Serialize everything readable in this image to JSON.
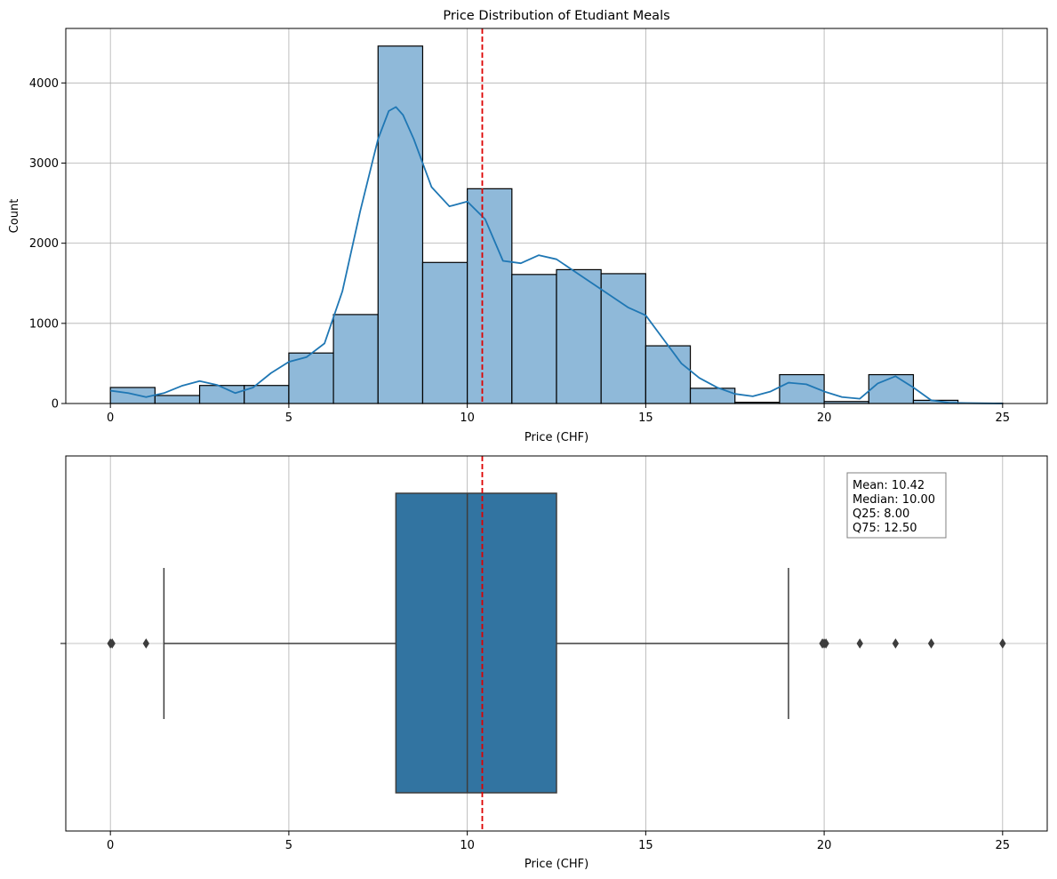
{
  "chart_data": [
    {
      "type": "histogram",
      "title": "Price Distribution of Etudiant Meals",
      "xlabel": "Price (CHF)",
      "ylabel": "Count",
      "xlim": [
        -1.25,
        26.25
      ],
      "ylim": [
        0,
        4680
      ],
      "xticks": [
        0,
        5,
        10,
        15,
        20,
        25
      ],
      "yticks": [
        0,
        1000,
        2000,
        3000,
        4000
      ],
      "grid": true,
      "bin_edges": [
        0,
        1.25,
        2.5,
        3.75,
        5,
        6.25,
        7.5,
        8.75,
        10,
        11.25,
        12.5,
        13.75,
        15,
        16.25,
        17.5,
        18.75,
        20,
        21.25,
        22.5,
        23.75,
        25
      ],
      "counts": [
        200,
        100,
        225,
        225,
        630,
        1110,
        4460,
        1760,
        2680,
        1610,
        1670,
        1620,
        720,
        190,
        15,
        360,
        25,
        360,
        40,
        5
      ],
      "bar_color": "#8fb9d9",
      "kde_color": "#1f77b4",
      "kde": {
        "x": [
          0,
          0.5,
          1,
          1.5,
          2,
          2.5,
          3,
          3.5,
          4,
          4.5,
          5,
          5.5,
          6,
          6.5,
          7,
          7.5,
          7.8,
          8,
          8.2,
          8.5,
          9,
          9.5,
          10,
          10.5,
          11,
          11.5,
          12,
          12.5,
          13,
          13.5,
          14,
          14.5,
          15,
          15.5,
          16,
          16.5,
          17,
          17.5,
          18,
          18.5,
          19,
          19.5,
          20,
          20.5,
          21,
          21.5,
          22,
          22.5,
          23,
          23.5,
          24,
          24.5,
          25
        ],
        "y": [
          160,
          130,
          80,
          130,
          220,
          280,
          230,
          130,
          200,
          380,
          520,
          580,
          750,
          1400,
          2400,
          3300,
          3650,
          3700,
          3600,
          3300,
          2700,
          2460,
          2520,
          2300,
          1780,
          1750,
          1850,
          1800,
          1650,
          1500,
          1350,
          1200,
          1100,
          800,
          500,
          320,
          200,
          120,
          90,
          150,
          260,
          240,
          150,
          80,
          60,
          250,
          340,
          200,
          40,
          10,
          5,
          2,
          0
        ]
      },
      "mean_line": {
        "value": 10.42,
        "color": "#dd0000"
      }
    },
    {
      "type": "boxplot",
      "xlabel": "Price (CHF)",
      "xlim": [
        -1.25,
        26.25
      ],
      "xticks": [
        0,
        5,
        10,
        15,
        20,
        25
      ],
      "grid": true,
      "q1": 8.0,
      "median": 10.0,
      "q3": 12.5,
      "whisker_low": 1.5,
      "whisker_high": 19.0,
      "outliers": [
        0,
        0.05,
        1,
        20,
        20.05,
        19.95,
        21,
        22,
        23,
        25
      ],
      "box_color": "#3274a1",
      "mean_line": {
        "value": 10.42,
        "color": "#dd0000"
      },
      "stats_box": [
        "Mean: 10.42",
        "Median: 10.00",
        "Q25: 8.00",
        "Q75: 12.50"
      ]
    }
  ]
}
